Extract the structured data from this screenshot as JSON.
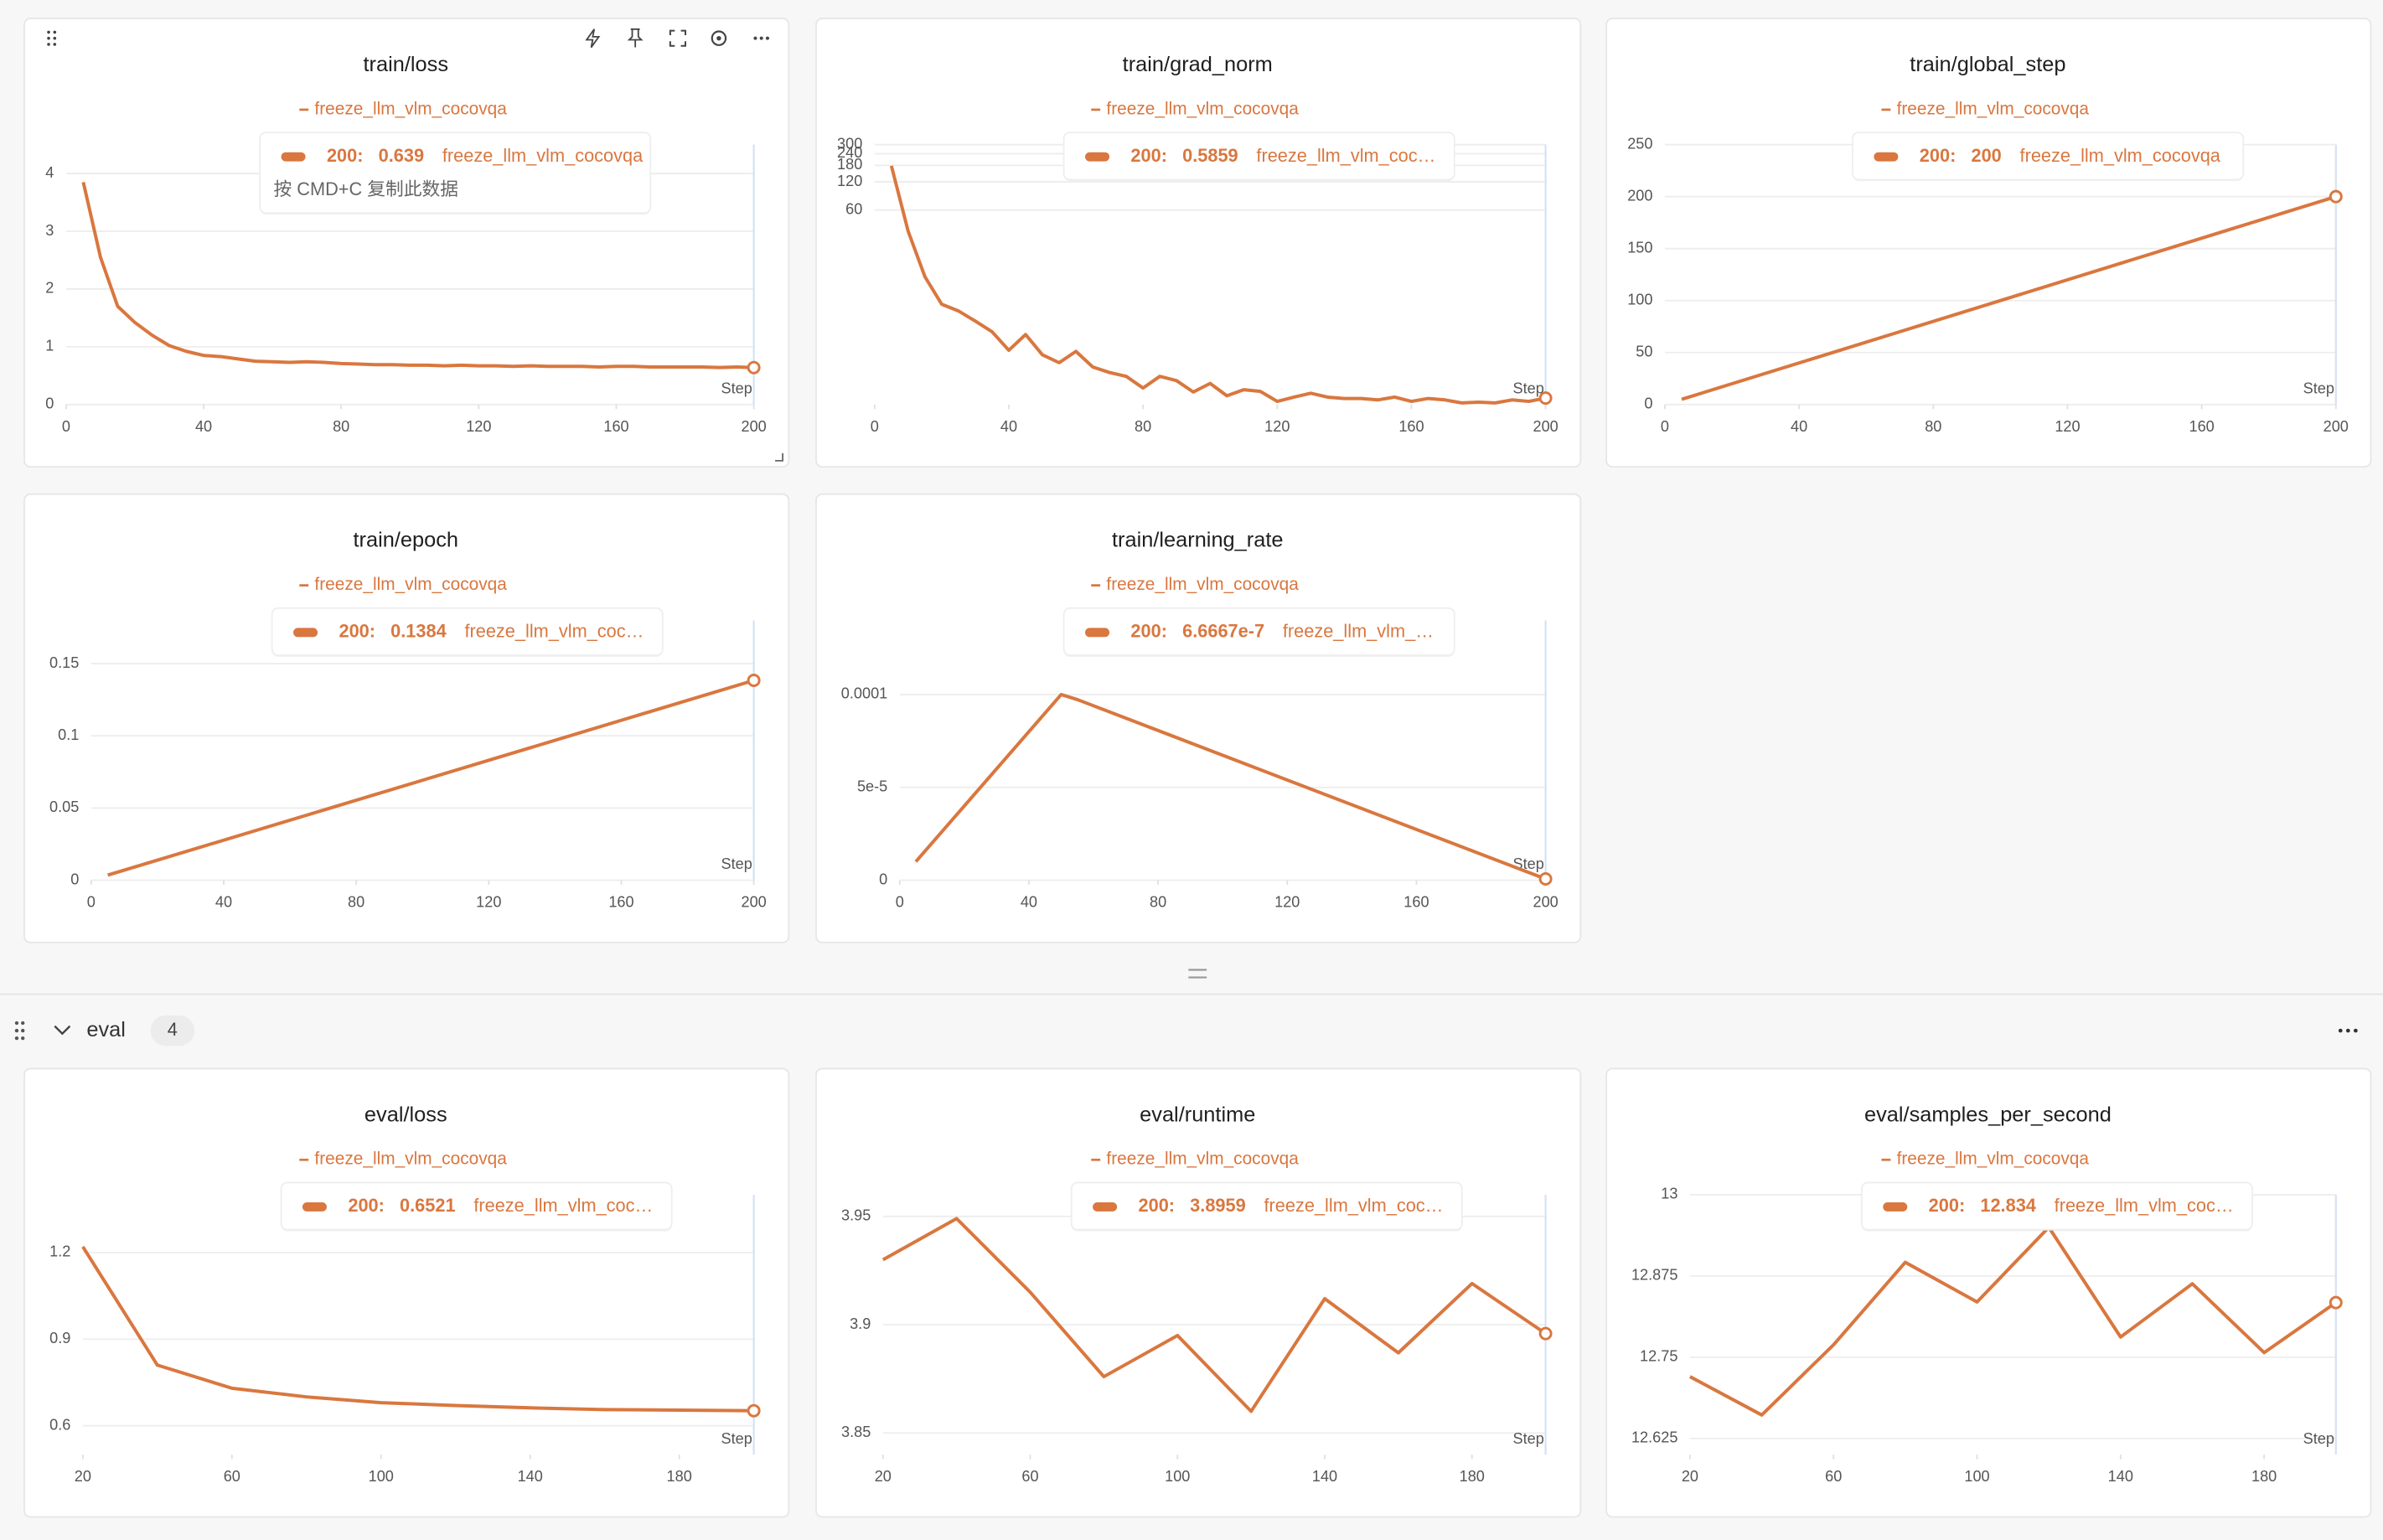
{
  "chart_data": [
    {
      "type": "line",
      "title": "train/loss",
      "x_label": "Step",
      "grid": true,
      "x": [
        5,
        10,
        15,
        20,
        25,
        30,
        35,
        40,
        45,
        50,
        55,
        60,
        65,
        70,
        75,
        80,
        85,
        90,
        95,
        100,
        105,
        110,
        115,
        120,
        125,
        130,
        135,
        140,
        145,
        150,
        155,
        160,
        165,
        170,
        175,
        180,
        185,
        190,
        195,
        200
      ],
      "series": [
        {
          "name": "freeze_llm_vlm_cocovqa",
          "color": "#d9773f",
          "values": [
            3.85,
            2.55,
            1.7,
            1.42,
            1.2,
            1.02,
            0.92,
            0.85,
            0.83,
            0.79,
            0.75,
            0.74,
            0.73,
            0.74,
            0.73,
            0.71,
            0.7,
            0.69,
            0.69,
            0.68,
            0.68,
            0.67,
            0.68,
            0.67,
            0.67,
            0.66,
            0.67,
            0.66,
            0.66,
            0.66,
            0.65,
            0.66,
            0.66,
            0.65,
            0.65,
            0.65,
            0.65,
            0.64,
            0.65,
            0.639
          ]
        }
      ],
      "xlim": [
        0,
        200
      ],
      "xticks": [
        0,
        40,
        80,
        120,
        160,
        200
      ],
      "ylim": [
        0,
        4.5
      ],
      "yticks": [
        0,
        1,
        2,
        3,
        4
      ],
      "tooltip": {
        "step": "200:",
        "value": "0.639",
        "run": "freeze_llm_vlm_cocovqa",
        "hint": "按 CMD+C 复制此数据"
      }
    },
    {
      "type": "line",
      "title": "train/grad_norm",
      "x_label": "Step",
      "grid": true,
      "yscale": "log",
      "x": [
        5,
        10,
        15,
        20,
        25,
        30,
        35,
        40,
        45,
        50,
        55,
        60,
        65,
        70,
        75,
        80,
        85,
        90,
        95,
        100,
        105,
        110,
        115,
        120,
        125,
        130,
        135,
        140,
        145,
        150,
        155,
        160,
        165,
        170,
        175,
        180,
        185,
        190,
        195,
        200
      ],
      "series": [
        {
          "name": "freeze_llm_vlm_cocovqa",
          "color": "#d9773f",
          "values": [
            178,
            35.5,
            11.6,
            5.9,
            5.0,
            3.9,
            3.0,
            1.9,
            2.8,
            1.7,
            1.4,
            1.85,
            1.26,
            1.1,
            1.0,
            0.75,
            1.0,
            0.9,
            0.68,
            0.84,
            0.62,
            0.72,
            0.69,
            0.54,
            0.6,
            0.66,
            0.6,
            0.58,
            0.58,
            0.56,
            0.6,
            0.54,
            0.58,
            0.56,
            0.52,
            0.53,
            0.52,
            0.56,
            0.54,
            0.5859
          ]
        }
      ],
      "xlim": [
        0,
        200
      ],
      "xticks": [
        0,
        40,
        80,
        120,
        160,
        200
      ],
      "ylim": [
        0.5,
        300
      ],
      "yticks": [
        60,
        120,
        180,
        240,
        300
      ],
      "tooltip": {
        "step": "200:",
        "value": "0.5859",
        "run": "freeze_llm_vlm_coc…"
      }
    },
    {
      "type": "line",
      "title": "train/global_step",
      "x_label": "Step",
      "grid": true,
      "x": [
        5,
        200
      ],
      "series": [
        {
          "name": "freeze_llm_vlm_cocovqa",
          "color": "#d9773f",
          "values": [
            5,
            200
          ]
        }
      ],
      "xlim": [
        0,
        200
      ],
      "xticks": [
        0,
        40,
        80,
        120,
        160,
        200
      ],
      "ylim": [
        0,
        250
      ],
      "yticks": [
        0,
        50,
        100,
        150,
        200,
        250
      ],
      "tooltip": {
        "step": "200:",
        "value": "200",
        "run": "freeze_llm_vlm_cocovqa"
      }
    },
    {
      "type": "line",
      "title": "train/epoch",
      "x_label": "Step",
      "grid": true,
      "x": [
        5,
        200
      ],
      "series": [
        {
          "name": "freeze_llm_vlm_cocovqa",
          "color": "#d9773f",
          "values": [
            0.0035,
            0.1384
          ]
        }
      ],
      "xlim": [
        0,
        200
      ],
      "xticks": [
        0,
        40,
        80,
        120,
        160,
        200
      ],
      "ylim": [
        0,
        0.18
      ],
      "yticks": [
        0,
        0.05,
        0.1,
        0.15
      ],
      "tooltip": {
        "step": "200:",
        "value": "0.1384",
        "run": "freeze_llm_vlm_coc…"
      }
    },
    {
      "type": "line",
      "title": "train/learning_rate",
      "x_label": "Step",
      "grid": true,
      "x": [
        5,
        50,
        55,
        200
      ],
      "series": [
        {
          "name": "freeze_llm_vlm_cocovqa",
          "color": "#d9773f",
          "values": [
            1e-05,
            0.0001,
            9.73e-05,
            6.6667e-07
          ]
        }
      ],
      "xlim": [
        0,
        200
      ],
      "xticks": [
        0,
        40,
        80,
        120,
        160,
        200
      ],
      "ylim": [
        0,
        0.00014
      ],
      "yticks": [
        0,
        {
          "value": 5e-05,
          "label": "5e-5"
        },
        0.0001
      ],
      "tooltip": {
        "step": "200:",
        "value": "6.6667e-7",
        "run": "freeze_llm_vlm_…"
      }
    },
    {
      "type": "line",
      "title": "eval/loss",
      "x_label": "Step",
      "grid": true,
      "x": [
        20,
        40,
        60,
        80,
        100,
        120,
        140,
        160,
        180,
        200
      ],
      "series": [
        {
          "name": "freeze_llm_vlm_cocovqa",
          "color": "#d9773f",
          "values": [
            1.22,
            0.81,
            0.73,
            0.7,
            0.68,
            0.67,
            0.662,
            0.656,
            0.654,
            0.6521
          ]
        }
      ],
      "xlim": [
        20,
        200
      ],
      "xticks": [
        20,
        60,
        100,
        140,
        180
      ],
      "ylim": [
        0.5,
        1.4
      ],
      "yticks": [
        0.6,
        0.9,
        1.2
      ],
      "tooltip": {
        "step": "200:",
        "value": "0.6521",
        "run": "freeze_llm_vlm_coc…"
      }
    },
    {
      "type": "line",
      "title": "eval/runtime",
      "x_label": "Step",
      "grid": true,
      "x": [
        20,
        40,
        60,
        80,
        100,
        120,
        140,
        160,
        180,
        200
      ],
      "series": [
        {
          "name": "freeze_llm_vlm_cocovqa",
          "color": "#d9773f",
          "values": [
            3.93,
            3.949,
            3.915,
            3.876,
            3.895,
            3.86,
            3.912,
            3.887,
            3.919,
            3.8959
          ]
        }
      ],
      "xlim": [
        20,
        200
      ],
      "xticks": [
        20,
        60,
        100,
        140,
        180
      ],
      "ylim": [
        3.84,
        3.96
      ],
      "yticks": [
        3.85,
        3.9,
        3.95
      ],
      "tooltip": {
        "step": "200:",
        "value": "3.8959",
        "run": "freeze_llm_vlm_coc…"
      }
    },
    {
      "type": "line",
      "title": "eval/samples_per_second",
      "x_label": "Step",
      "grid": true,
      "x": [
        20,
        40,
        60,
        80,
        100,
        120,
        140,
        160,
        180,
        200
      ],
      "series": [
        {
          "name": "freeze_llm_vlm_cocovqa",
          "color": "#d9773f",
          "values": [
            12.72,
            12.661,
            12.769,
            12.896,
            12.835,
            12.95,
            12.781,
            12.863,
            12.757,
            12.834
          ]
        }
      ],
      "xlim": [
        20,
        200
      ],
      "xticks": [
        20,
        60,
        100,
        140,
        180
      ],
      "ylim": [
        12.6,
        13
      ],
      "yticks": [
        12.625,
        12.75,
        12.875,
        13
      ],
      "tooltip": {
        "step": "200:",
        "value": "12.834",
        "run": "freeze_llm_vlm_coc…"
      }
    }
  ],
  "section": {
    "title": "eval",
    "count": 4
  }
}
